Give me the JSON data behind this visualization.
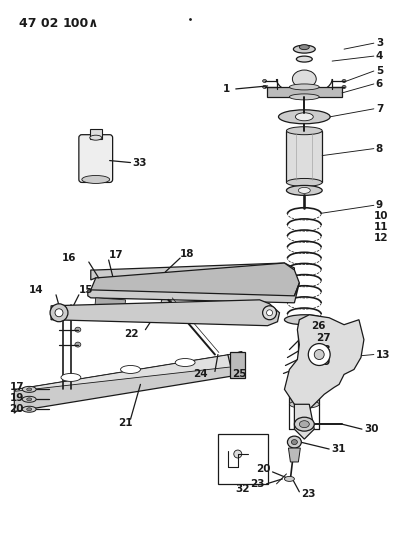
{
  "bg_color": "#ffffff",
  "line_color": "#1a1a1a",
  "figsize": [
    4.1,
    5.33
  ],
  "dpi": 100,
  "header": "47 02   100∧"
}
